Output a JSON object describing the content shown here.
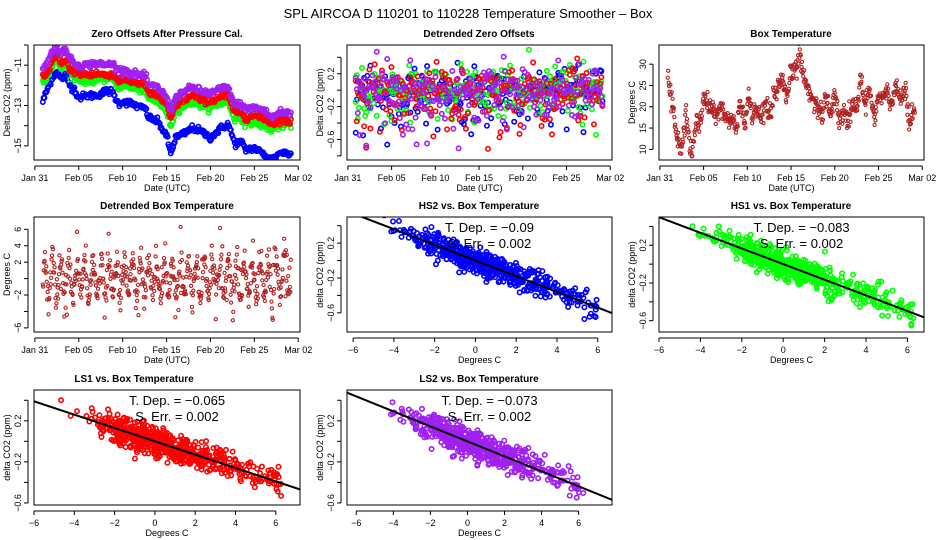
{
  "page": {
    "title": "SPL   AIRCOA D   110201 to 110228   Temperature Smoother – Box"
  },
  "colors": {
    "HS2": "#0000ff",
    "HS1": "#00ff00",
    "LS1": "#ff0000",
    "LS2": "#a020f0",
    "temperature": "#b22222",
    "fit_line": "#000000"
  },
  "chart_data": [
    {
      "id": "zero-offsets",
      "type": "scatter",
      "title": "Zero Offsets After Pressure Cal.",
      "xlabel": "Date (UTC)",
      "ylabel": "Delta CO2 (ppm)",
      "x_ticks": [
        "Jan 31",
        "Feb 05",
        "Feb 10",
        "Feb 15",
        "Feb 20",
        "Feb 25",
        "Mar 02"
      ],
      "x_tick_days": [
        0,
        5,
        10,
        15,
        20,
        25,
        30
      ],
      "xlim": [
        -0.1,
        30.2
      ],
      "ylim": [
        -15.7,
        -10.0
      ],
      "y_ticks": [
        -15,
        -14,
        -13,
        -12,
        -11,
        -10
      ],
      "y_tick_labels": [
        "-15",
        "",
        "-13",
        "",
        "-11",
        ""
      ],
      "series": [
        {
          "name": "HS2",
          "color_key": "HS2",
          "x": [
            0.9,
            1.5,
            2,
            2.5,
            3,
            3.5,
            4,
            4.5,
            5,
            6,
            7,
            8,
            8.8,
            9.5,
            10,
            11,
            12,
            12.5,
            13,
            14,
            15,
            15.5,
            16,
            17,
            18,
            19,
            20,
            21,
            22,
            22.8,
            23.5,
            24,
            25,
            26,
            27,
            28,
            29
          ],
          "y": [
            -12.8,
            -12.1,
            -11.6,
            -11.3,
            -11.7,
            -11.5,
            -12.0,
            -12.2,
            -12.6,
            -12.5,
            -12.5,
            -12.3,
            -12.3,
            -12.9,
            -12.8,
            -12.9,
            -13.1,
            -13.1,
            -13.6,
            -13.8,
            -14.5,
            -15.4,
            -14.6,
            -14.4,
            -14.1,
            -14.3,
            -14.6,
            -14.2,
            -13.9,
            -14.9,
            -14.8,
            -15.2,
            -15.1,
            -15.4,
            -15.7,
            -15.3,
            -15.4
          ]
        },
        {
          "name": "HS1",
          "color_key": "HS1",
          "x": [
            0.9,
            1.5,
            2,
            2.5,
            3,
            3.5,
            4,
            4.5,
            5,
            6,
            7,
            8,
            8.8,
            9.5,
            10,
            11,
            12,
            12.5,
            13,
            14,
            15,
            15.5,
            16,
            17,
            18,
            19,
            20,
            21,
            22,
            22.8,
            23.5,
            24,
            25,
            26,
            27,
            28,
            29
          ],
          "y": [
            -11.8,
            -11.5,
            -11.0,
            -10.7,
            -11.2,
            -10.8,
            -11.4,
            -11.6,
            -11.7,
            -11.8,
            -11.7,
            -11.7,
            -11.6,
            -12.1,
            -12.0,
            -12.1,
            -12.2,
            -12.2,
            -12.7,
            -12.8,
            -13.3,
            -14.0,
            -13.3,
            -13.0,
            -12.8,
            -13.0,
            -13.1,
            -12.9,
            -12.8,
            -13.7,
            -13.6,
            -13.9,
            -13.8,
            -14.0,
            -14.2,
            -14.0,
            -13.9
          ]
        },
        {
          "name": "LS1",
          "color_key": "LS1",
          "x": [
            0.9,
            1.5,
            2,
            2.5,
            3,
            3.5,
            4,
            4.5,
            5,
            6,
            7,
            8,
            8.8,
            9.5,
            10,
            11,
            12,
            12.5,
            13,
            14,
            15,
            15.5,
            16,
            17,
            18,
            19,
            20,
            21,
            22,
            22.8,
            23.5,
            24,
            25,
            26,
            27,
            28,
            29
          ],
          "y": [
            -11.6,
            -11.3,
            -10.8,
            -10.5,
            -11.0,
            -10.6,
            -11.2,
            -11.4,
            -11.4,
            -11.5,
            -11.4,
            -11.5,
            -11.4,
            -11.8,
            -11.7,
            -11.8,
            -11.9,
            -11.9,
            -12.4,
            -12.5,
            -13.0,
            -13.7,
            -13.0,
            -12.7,
            -12.5,
            -12.7,
            -12.8,
            -12.6,
            -12.5,
            -13.4,
            -13.3,
            -13.6,
            -13.5,
            -13.6,
            -13.9,
            -13.7,
            -13.8
          ]
        },
        {
          "name": "LS2",
          "color_key": "LS2",
          "x": [
            0.9,
            1.5,
            2,
            2.5,
            3,
            3.5,
            4,
            4.5,
            5,
            6,
            7,
            8,
            8.8,
            9.5,
            10,
            11,
            12,
            12.5,
            13,
            14,
            15,
            15.5,
            16,
            17,
            18,
            19,
            20,
            21,
            22,
            22.8,
            23.5,
            24,
            25,
            26,
            27,
            28,
            29
          ],
          "y": [
            -11.1,
            -10.8,
            -10.3,
            -10.1,
            -10.5,
            -10.1,
            -10.7,
            -10.9,
            -11.0,
            -11.0,
            -10.9,
            -11.0,
            -10.9,
            -11.3,
            -11.2,
            -11.4,
            -11.5,
            -11.5,
            -12.0,
            -12.1,
            -12.6,
            -13.3,
            -12.6,
            -12.3,
            -12.1,
            -12.3,
            -12.4,
            -12.2,
            -12.1,
            -13.0,
            -12.9,
            -13.2,
            -13.1,
            -13.2,
            -13.6,
            -13.3,
            -13.4
          ]
        }
      ]
    },
    {
      "id": "detrended-zero-offsets",
      "type": "scatter",
      "title": "Detrended Zero Offsets",
      "xlabel": "Date (UTC)",
      "ylabel": "Delta CO2 (ppm)",
      "x_ticks": [
        "Jan 31",
        "Feb 05",
        "Feb 10",
        "Feb 15",
        "Feb 20",
        "Feb 25",
        "Mar 02"
      ],
      "x_tick_days": [
        0,
        5,
        10,
        15,
        20,
        25,
        30
      ],
      "xlim": [
        -0.1,
        30.2
      ],
      "ylim": [
        -0.85,
        0.55
      ],
      "y_ticks": [
        -0.8,
        -0.6,
        -0.4,
        -0.2,
        0.0,
        0.2,
        0.4
      ],
      "y_tick_labels": [
        "",
        "-0.6",
        "",
        "-0.2",
        "",
        "0.2",
        ""
      ],
      "value_range": {
        "min": -0.78,
        "max": 0.5
      },
      "series_names": [
        "HS2",
        "HS1",
        "LS1",
        "LS2"
      ]
    },
    {
      "id": "box-temperature",
      "type": "scatter",
      "title": "Box Temperature",
      "xlabel": "Date (UTC)",
      "ylabel": "Degrees C",
      "x_ticks": [
        "Jan 31",
        "Feb 05",
        "Feb 10",
        "Feb 15",
        "Feb 20",
        "Feb 25",
        "Mar 02"
      ],
      "x_tick_days": [
        0,
        5,
        10,
        15,
        20,
        25,
        30
      ],
      "xlim": [
        -0.1,
        30.2
      ],
      "ylim": [
        7.5,
        34.5
      ],
      "y_ticks": [
        10,
        15,
        20,
        25,
        30
      ],
      "y_tick_labels": [
        "10",
        "15",
        "20",
        "25",
        "30"
      ],
      "x": [
        0.9,
        1.2,
        1.5,
        1.8,
        2.1,
        2.4,
        2.7,
        3.0,
        3.3,
        3.6,
        3.9,
        4.2,
        4.5,
        4.8,
        5.1,
        5.5,
        6,
        6.5,
        7,
        7.5,
        8,
        8.5,
        8.8,
        9.1,
        9.5,
        9.8,
        10.1,
        10.5,
        11,
        11.5,
        12,
        12.5,
        13,
        13.5,
        14,
        14.5,
        15,
        15.5,
        16,
        16.3,
        16.7,
        17,
        17.5,
        18,
        18.5,
        19,
        19.5,
        20,
        20.5,
        21,
        21.5,
        22,
        22.5,
        23,
        23.5,
        24,
        24.5,
        25,
        25.5,
        26,
        26.5,
        27,
        27.5,
        28,
        28.5,
        29
      ],
      "y": [
        27,
        24,
        20,
        15,
        12,
        9,
        14,
        18,
        12,
        9,
        13,
        17,
        15,
        19,
        22,
        21,
        19,
        18,
        20,
        18,
        16,
        17,
        14,
        21,
        18,
        16,
        23,
        18,
        20,
        16,
        20,
        18,
        22,
        24,
        26,
        21,
        28,
        29,
        33,
        28,
        25,
        24,
        22,
        20,
        18,
        23,
        18,
        23,
        17,
        19,
        16,
        21,
        20,
        26,
        20,
        25,
        17,
        23,
        21,
        24,
        20,
        25,
        22,
        24,
        17,
        19
      ]
    },
    {
      "id": "detrended-box-temperature",
      "type": "scatter",
      "title": "Detrended Box Temperature",
      "xlabel": "Date (UTC)",
      "ylabel": "Degrees C",
      "x_ticks": [
        "Jan 31",
        "Feb 05",
        "Feb 10",
        "Feb 15",
        "Feb 20",
        "Feb 25",
        "Mar 02"
      ],
      "x_tick_days": [
        0,
        5,
        10,
        15,
        20,
        25,
        30
      ],
      "xlim": [
        -0.1,
        30.2
      ],
      "ylim": [
        -6.5,
        7.5
      ],
      "y_ticks": [
        -6,
        -4,
        -2,
        0,
        2,
        4,
        6
      ],
      "y_tick_labels": [
        "-6",
        "",
        "-2",
        "",
        "2",
        "4",
        "6"
      ],
      "value_range": {
        "min": -6.2,
        "max": 7.1
      }
    },
    {
      "id": "hs2-vs-box",
      "type": "scatter",
      "title": "HS2 vs. Box Temperature",
      "xlabel": "Degrees C",
      "ylabel": "delta CO2 (ppm)",
      "xlim": [
        -6.3,
        6.7
      ],
      "ylim": [
        -0.82,
        0.5
      ],
      "x_ticks": [
        -6,
        -4,
        -2,
        0,
        2,
        4,
        6
      ],
      "y_ticks": [
        -0.6,
        -0.4,
        -0.2,
        0.0,
        0.2,
        0.4
      ],
      "y_tick_labels": [
        "-0.6",
        "",
        "-0.2",
        "",
        "0.2",
        ""
      ],
      "series_key": "HS2",
      "slope": -0.09,
      "intercept": 0.0,
      "annotation": {
        "t_dep": "T. Dep. =  −0.09",
        "s_err": "S. Err. =  0.002"
      }
    },
    {
      "id": "hs1-vs-box",
      "type": "scatter",
      "title": "HS1 vs. Box Temperature",
      "xlabel": "Degrees C",
      "ylabel": "delta CO2 (ppm)",
      "xlim": [
        -6.0,
        6.8
      ],
      "ylim": [
        -0.72,
        0.5
      ],
      "x_ticks": [
        -6,
        -4,
        -2,
        0,
        2,
        4,
        6
      ],
      "y_ticks": [
        -0.6,
        -0.4,
        -0.2,
        0.0,
        0.2,
        0.4
      ],
      "y_tick_labels": [
        "-0.6",
        "",
        "-0.2",
        "",
        "0.2",
        ""
      ],
      "series_key": "HS1",
      "slope": -0.083,
      "intercept": 0.0,
      "annotation": {
        "t_dep": "T. Dep. =  −0.083",
        "s_err": "S. Err. =  0.002"
      }
    },
    {
      "id": "ls1-vs-box",
      "type": "scatter",
      "title": "LS1 vs. Box Temperature",
      "xlabel": "Degrees C",
      "ylabel": "delta CO2 (ppm)",
      "xlim": [
        -6.0,
        7.2
      ],
      "ylim": [
        -0.62,
        0.5
      ],
      "x_ticks": [
        -6,
        -4,
        -2,
        0,
        2,
        4,
        6
      ],
      "y_ticks": [
        -0.6,
        -0.4,
        -0.2,
        0.0,
        0.2,
        0.4
      ],
      "y_tick_labels": [
        "-0.6",
        "",
        "-0.2",
        "",
        "0.2",
        ""
      ],
      "series_key": "LS1",
      "slope": -0.065,
      "intercept": 0.0,
      "annotation": {
        "t_dep": "T. Dep. =  −0.065",
        "s_err": "S. Err. =  0.002"
      }
    },
    {
      "id": "ls2-vs-box",
      "type": "scatter",
      "title": "LS2 vs. Box Temperature",
      "xlabel": "Degrees C",
      "ylabel": "delta CO2 (ppm)",
      "xlim": [
        -6.5,
        7.8
      ],
      "ylim": [
        -0.62,
        0.5
      ],
      "x_ticks": [
        -6,
        -4,
        -2,
        0,
        2,
        4,
        6
      ],
      "y_ticks": [
        -0.6,
        -0.4,
        -0.2,
        0.0,
        0.2,
        0.4
      ],
      "y_tick_labels": [
        "-0.6",
        "",
        "-0.2",
        "",
        "0.2",
        ""
      ],
      "series_key": "LS2",
      "slope": -0.073,
      "intercept": 0.0,
      "annotation": {
        "t_dep": "T. Dep. =  −0.073",
        "s_err": "S. Err. =  0.002"
      }
    }
  ]
}
